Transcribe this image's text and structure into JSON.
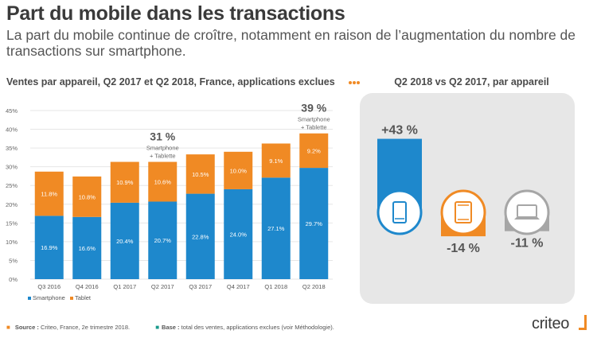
{
  "header": {
    "title": "Part du mobile dans les transactions",
    "subtitle": "La part du mobile continue de croître, notamment en raison de l’augmentation du nombre de transactions sur smartphone."
  },
  "colors": {
    "smartphone": "#1e88cc",
    "tablet": "#f08a24",
    "decline_gray": "#a6a6a6",
    "dots": "#f08a24"
  },
  "chart_data": [
    {
      "type": "bar",
      "stacked": true,
      "title": "Ventes par appareil, Q2 2017 et Q2 2018, France, applications exclues",
      "categories": [
        "Q3 2016",
        "Q4 2016",
        "Q1 2017",
        "Q2 2017",
        "Q3 2017",
        "Q4 2017",
        "Q1 2018",
        "Q2 2018"
      ],
      "series": [
        {
          "name": "Smartphone",
          "values": [
            16.9,
            16.6,
            20.4,
            20.7,
            22.8,
            24.0,
            27.1,
            29.7
          ],
          "labels": [
            "16.9%",
            "16.6%",
            "20.4%",
            "20.7%",
            "22.8%",
            "24.0%",
            "27.1%",
            "29.7%"
          ]
        },
        {
          "name": "Tablet",
          "values": [
            11.8,
            10.8,
            10.9,
            10.6,
            10.5,
            10.0,
            9.1,
            9.2
          ],
          "labels": [
            "11.8%",
            "10.8%",
            "10.9%",
            "10.6%",
            "10.5%",
            "10.0%",
            "9.1%",
            "9.2%"
          ]
        }
      ],
      "ylim": [
        0,
        45
      ],
      "yticks": [
        "0%",
        "5%",
        "10%",
        "15%",
        "20%",
        "25%",
        "30%",
        "35%",
        "40%",
        "45%"
      ],
      "grid": true,
      "legend": "bottom-left",
      "annotations": [
        {
          "category": "Q2 2017",
          "value": "31 %",
          "line1": "Smartphone",
          "line2": "+ Tablette"
        },
        {
          "category": "Q2 2018",
          "value": "39 %",
          "line1": "Smartphone",
          "line2": "+ Tablette"
        }
      ]
    },
    {
      "type": "bar",
      "title": "Q2 2018 vs Q2 2017, par appareil",
      "categories": [
        "Smartphone",
        "Tablette",
        "Ordinateur"
      ],
      "icons": [
        "smartphone-icon",
        "tablet-icon",
        "laptop-icon"
      ],
      "values": [
        43,
        -14,
        -11
      ],
      "labels": [
        "+43 %",
        "-14 %",
        "-11 %"
      ]
    }
  ],
  "footer": {
    "source_label": "Source :",
    "source_text": "Criteo, France, 2e trimestre 2018.",
    "base_label": "Base :",
    "base_text": "total des ventes, applications exclues (voir Méthodologie)."
  },
  "logo": {
    "text": "criteo"
  }
}
